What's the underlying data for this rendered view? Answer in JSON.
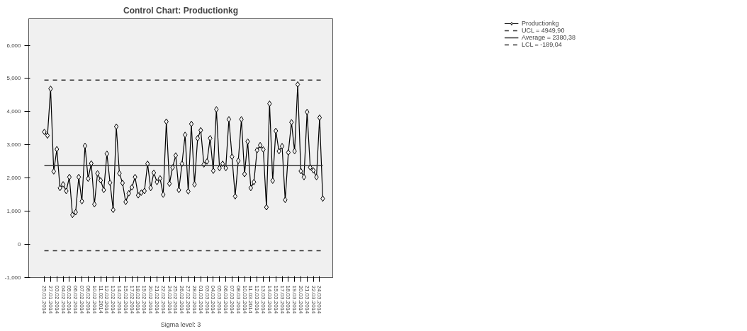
{
  "chart_data": {
    "type": "line",
    "title": "Control Chart: Productionkg",
    "categories": [
      "25.01.2014",
      null,
      "27.01.2014",
      null,
      "03.02.2014",
      null,
      "04.02.2014",
      null,
      "05.02.2014",
      null,
      "06.02.2014",
      null,
      "07.02.2014",
      null,
      "08.02.2014",
      null,
      "10.02.2014",
      null,
      "11.02.2014",
      null,
      "12.02.2014",
      null,
      "13.02.2014",
      null,
      "14.02.2014",
      null,
      "15.02.2014",
      null,
      "17.02.2014",
      null,
      "18.02.2014",
      null,
      "19.02.2014",
      null,
      "20.02.2014",
      null,
      "21.02.2014",
      null,
      "22.02.2014",
      null,
      "24.02.2014",
      null,
      "25.02.2014",
      null,
      "26.02.2014",
      null,
      "27.02.2014",
      null,
      "28.02.2014",
      null,
      "01.03.2014",
      null,
      "03.03.2014",
      null,
      "04.03.2014",
      null,
      "05.03.2014",
      null,
      "06.03.2014",
      null,
      "07.03.2014",
      null,
      "08.03.2014",
      null,
      "10.03.2014",
      null,
      "11.03.2014",
      null,
      "12.03.2014",
      null,
      "13.03.2014",
      null,
      "14.03.2014",
      null,
      "15.03.2014",
      null,
      "17.03.2014",
      null,
      "18.03.2014",
      null,
      "19.03.2014",
      null,
      "20.03.2014",
      null,
      "21.03.2014",
      null,
      "22.03.2014",
      null,
      "24.03.2014",
      null
    ],
    "series": [
      {
        "name": "Productionkg",
        "color": "#000000",
        "values": [
          3390,
          3280,
          4690,
          2200,
          2870,
          1700,
          1810,
          1610,
          2030,
          890,
          970,
          2030,
          1300,
          2970,
          1980,
          2440,
          1210,
          2140,
          1930,
          1640,
          2730,
          1860,
          1040,
          3550,
          2140,
          1850,
          1280,
          1540,
          1720,
          2030,
          1480,
          1560,
          1610,
          2430,
          1700,
          2160,
          1880,
          1990,
          1500,
          3700,
          1830,
          2320,
          2680,
          1640,
          2430,
          3300,
          1600,
          3630,
          1810,
          3200,
          3440,
          2410,
          2500,
          3200,
          2220,
          4070,
          2300,
          2430,
          2300,
          3770,
          2640,
          1450,
          2520,
          3770,
          2120,
          3100,
          1700,
          1880,
          2840,
          2990,
          2860,
          1120,
          4240,
          1920,
          3420,
          2810,
          2960,
          1340,
          2770,
          3680,
          2810,
          4820,
          2210,
          2030,
          3990,
          2320,
          2230,
          2030,
          3820,
          1380
        ]
      }
    ],
    "ylim": [
      -1000,
      6800
    ],
    "yticks": [
      {
        "value": -1000,
        "label": "-1,000"
      },
      0,
      {
        "value": 1000,
        "label": "1,000"
      },
      {
        "value": 2000,
        "label": "2,000"
      },
      {
        "value": 3000,
        "label": "3,000"
      },
      {
        "value": 4000,
        "label": "4,000"
      },
      {
        "value": 5000,
        "label": "5,000"
      },
      {
        "value": 6000,
        "label": "6,000"
      }
    ],
    "ref_lines": [
      {
        "axis": "y",
        "value": 4949.9,
        "label": "UCL = 4949,90",
        "color": "#333333",
        "line_style": "dashed"
      },
      {
        "axis": "y",
        "value": 2380.38,
        "label": "Average = 2380,38",
        "color": "#333333",
        "line_style": "solid"
      },
      {
        "axis": "y",
        "value": -189.04,
        "label": "LCL = -189,04",
        "color": "#333333",
        "line_style": "dashed"
      }
    ],
    "annotations": [
      "Sigma level: 3"
    ],
    "legend": "top right",
    "grid": false,
    "marker": "diamond",
    "line_style": "solid"
  }
}
